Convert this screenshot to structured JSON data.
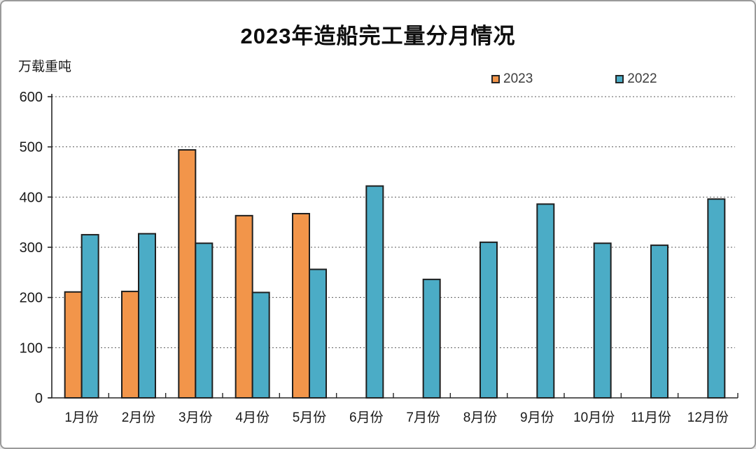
{
  "window": {
    "background": "#ffffff",
    "border_color": "#9a9a9a"
  },
  "chart_data": {
    "type": "bar",
    "title": "2023年造船完工量分月情况",
    "ylabel": "万载重吨",
    "xlabel": "",
    "categories": [
      "1月份",
      "2月份",
      "3月份",
      "4月份",
      "5月份",
      "6月份",
      "7月份",
      "8月份",
      "9月份",
      "10月份",
      "11月份",
      "12月份"
    ],
    "series": [
      {
        "name": "2023",
        "color": "#F2954A",
        "values": [
          211,
          212,
          494,
          363,
          367,
          null,
          null,
          null,
          null,
          null,
          null,
          null
        ]
      },
      {
        "name": "2022",
        "color": "#4BACC6",
        "values": [
          325,
          327,
          308,
          210,
          256,
          422,
          236,
          310,
          386,
          308,
          304,
          396
        ]
      }
    ],
    "ylim": [
      0,
      600
    ],
    "yticks": [
      0,
      100,
      200,
      300,
      400,
      500,
      600
    ],
    "grid": "horizontal-dotted",
    "gridline_color": "#5a5a5a",
    "axis_color": "#262626",
    "bar_outline_color": "#1f1f1f",
    "tick_label_color": "#1a1a1a",
    "legend_position": "top-right"
  }
}
